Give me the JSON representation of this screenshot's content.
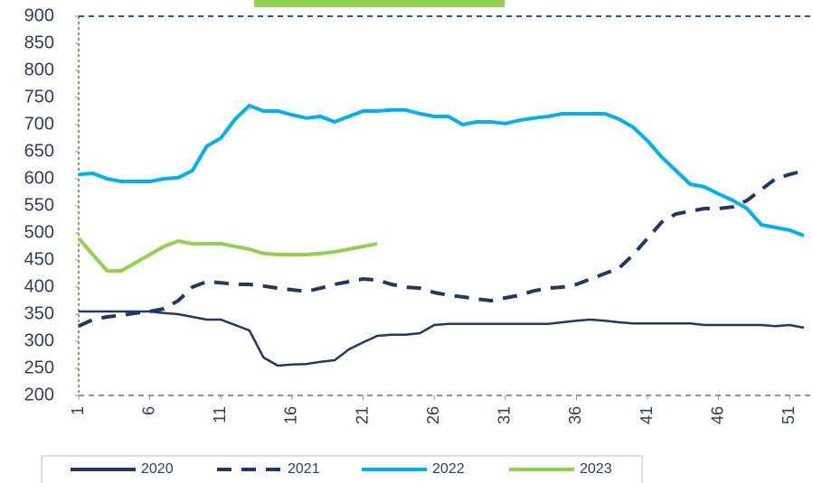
{
  "chart_data": {
    "type": "line",
    "x": [
      1,
      2,
      3,
      4,
      5,
      6,
      7,
      8,
      9,
      10,
      11,
      12,
      13,
      14,
      15,
      16,
      17,
      18,
      19,
      20,
      21,
      22,
      23,
      24,
      25,
      26,
      27,
      28,
      29,
      30,
      31,
      32,
      33,
      34,
      35,
      36,
      37,
      38,
      39,
      40,
      41,
      42,
      43,
      44,
      45,
      46,
      47,
      48,
      49,
      50,
      51,
      52
    ],
    "xlim": [
      1,
      52
    ],
    "xticks": [
      1,
      6,
      11,
      16,
      21,
      26,
      31,
      36,
      41,
      46,
      51
    ],
    "ylim": [
      200,
      900
    ],
    "yticks": [
      200,
      250,
      300,
      350,
      400,
      450,
      500,
      550,
      600,
      650,
      700,
      750,
      800,
      850,
      900
    ],
    "legend": "bottom",
    "series": [
      {
        "name": "2020",
        "color": "#1f3864",
        "dash": false,
        "values": [
          355,
          355,
          355,
          355,
          355,
          355,
          352,
          350,
          345,
          340,
          340,
          330,
          320,
          270,
          255,
          257,
          258,
          262,
          265,
          285,
          298,
          310,
          312,
          312,
          315,
          330,
          332,
          332,
          332,
          332,
          332,
          332,
          332,
          332,
          335,
          338,
          340,
          338,
          335,
          333,
          333,
          333,
          333,
          333,
          330,
          330,
          330,
          330,
          330,
          328,
          330,
          325
        ]
      },
      {
        "name": "2021",
        "color": "#1f3864",
        "dash": true,
        "values": [
          328,
          340,
          345,
          348,
          352,
          355,
          360,
          375,
          400,
          410,
          408,
          405,
          405,
          402,
          398,
          395,
          392,
          398,
          405,
          410,
          415,
          413,
          405,
          400,
          398,
          390,
          385,
          382,
          378,
          375,
          380,
          385,
          393,
          398,
          400,
          405,
          415,
          425,
          435,
          460,
          490,
          520,
          535,
          540,
          545,
          545,
          548,
          560,
          580,
          600,
          608,
          615
        ]
      },
      {
        "name": "2022",
        "color": "#00b0f0",
        "dash": false,
        "values": [
          608,
          610,
          600,
          595,
          595,
          595,
          600,
          602,
          615,
          660,
          675,
          710,
          735,
          725,
          725,
          718,
          712,
          715,
          705,
          715,
          725,
          725,
          727,
          727,
          720,
          715,
          715,
          700,
          705,
          705,
          702,
          708,
          712,
          715,
          720,
          720,
          720,
          720,
          710,
          695,
          670,
          640,
          615,
          590,
          585,
          572,
          560,
          545,
          515,
          510,
          505,
          495
        ]
      },
      {
        "name": "2023",
        "color": "#92d050",
        "dash": false,
        "values": [
          490,
          460,
          430,
          430,
          445,
          460,
          475,
          485,
          480,
          480,
          480,
          475,
          470,
          462,
          460,
          460,
          460,
          462,
          465,
          470,
          475,
          480,
          null,
          null,
          null,
          null,
          null,
          null,
          null,
          null,
          null,
          null,
          null,
          null,
          null,
          null,
          null,
          null,
          null,
          null,
          null,
          null,
          null,
          null,
          null,
          null,
          null,
          null,
          null,
          null,
          null,
          null
        ]
      }
    ]
  }
}
